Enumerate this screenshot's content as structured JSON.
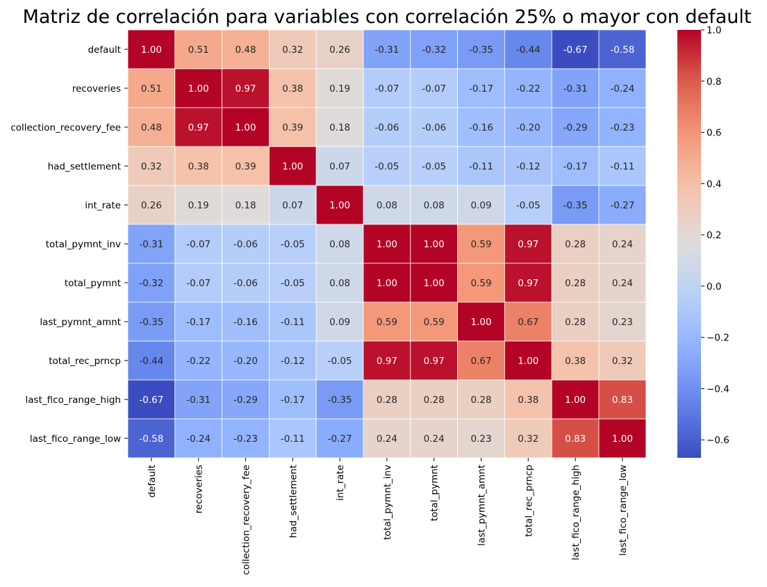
{
  "chart_data": {
    "type": "heatmap",
    "title": "Matriz de correlación para variables con correlación 25% o mayor con default",
    "rows": [
      "default",
      "recoveries",
      "collection_recovery_fee",
      "had_settlement",
      "int_rate",
      "total_pymnt_inv",
      "total_pymnt",
      "last_pymnt_amnt",
      "total_rec_prncp",
      "last_fico_range_high",
      "last_fico_range_low"
    ],
    "columns": [
      "default",
      "recoveries",
      "collection_recovery_fee",
      "had_settlement",
      "int_rate",
      "total_pymnt_inv",
      "total_pymnt",
      "last_pymnt_amnt",
      "total_rec_prncp",
      "last_fico_range_high",
      "last_fico_range_low"
    ],
    "values": [
      [
        1.0,
        0.51,
        0.48,
        0.32,
        0.26,
        -0.31,
        -0.32,
        -0.35,
        -0.44,
        -0.67,
        -0.58
      ],
      [
        0.51,
        1.0,
        0.97,
        0.38,
        0.19,
        -0.07,
        -0.07,
        -0.17,
        -0.22,
        -0.31,
        -0.24
      ],
      [
        0.48,
        0.97,
        1.0,
        0.39,
        0.18,
        -0.06,
        -0.06,
        -0.16,
        -0.2,
        -0.29,
        -0.23
      ],
      [
        0.32,
        0.38,
        0.39,
        1.0,
        0.07,
        -0.05,
        -0.05,
        -0.11,
        -0.12,
        -0.17,
        -0.11
      ],
      [
        0.26,
        0.19,
        0.18,
        0.07,
        1.0,
        0.08,
        0.08,
        0.09,
        -0.05,
        -0.35,
        -0.27
      ],
      [
        -0.31,
        -0.07,
        -0.06,
        -0.05,
        0.08,
        1.0,
        1.0,
        0.59,
        0.97,
        0.28,
        0.24
      ],
      [
        -0.32,
        -0.07,
        -0.06,
        -0.05,
        0.08,
        1.0,
        1.0,
        0.59,
        0.97,
        0.28,
        0.24
      ],
      [
        -0.35,
        -0.17,
        -0.16,
        -0.11,
        0.09,
        0.59,
        0.59,
        1.0,
        0.67,
        0.28,
        0.23
      ],
      [
        -0.44,
        -0.22,
        -0.2,
        -0.12,
        -0.05,
        0.97,
        0.97,
        0.67,
        1.0,
        0.38,
        0.32
      ],
      [
        -0.67,
        -0.31,
        -0.29,
        -0.17,
        -0.35,
        0.28,
        0.28,
        0.28,
        0.38,
        1.0,
        0.83
      ],
      [
        -0.58,
        -0.24,
        -0.23,
        -0.11,
        -0.27,
        0.24,
        0.24,
        0.23,
        0.32,
        0.83,
        1.0
      ]
    ],
    "value_format": "2 decimals",
    "colormap": "coolwarm",
    "vmin": -0.67,
    "vmax": 1.0,
    "colorbar": {
      "ticks": [
        1.0,
        0.8,
        0.6,
        0.4,
        0.2,
        0.0,
        -0.2,
        -0.4,
        -0.6
      ],
      "tick_labels": [
        "1.0",
        "0.8",
        "0.6",
        "0.4",
        "0.2",
        "0.0",
        "−0.2",
        "−0.4",
        "−0.6"
      ]
    },
    "cell_border_color": "#ffffff",
    "annotation_colors": {
      "dark_text": "#262626",
      "light_text": "#ffffff"
    },
    "xlabel": "",
    "ylabel": "",
    "grid": false,
    "legend": "colorbar-right"
  }
}
